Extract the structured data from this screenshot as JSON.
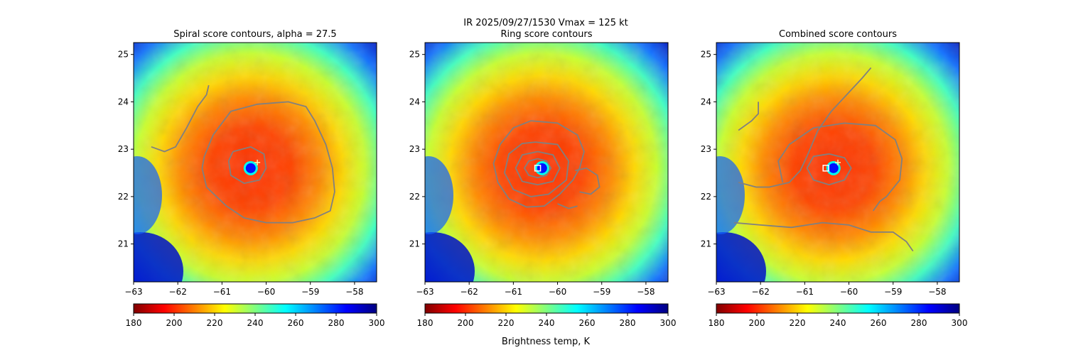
{
  "figure": {
    "suptitle_line1": "IR  2025/09/27/1530    Vmax = 125 kt",
    "colorbar_label": "Brightness temp, K"
  },
  "chart_data": [
    {
      "type": "heatmap",
      "title": "Spiral score contours, alpha = 27.5",
      "xlim": [
        -63,
        -57.5
      ],
      "ylim": [
        20.2,
        25.25
      ],
      "xticks": [
        "-63",
        "-62",
        "-61",
        "-60",
        "-59",
        "-58"
      ],
      "yticks": [
        "21",
        "22",
        "23",
        "24",
        "25"
      ],
      "center": [
        -60.35,
        22.6
      ],
      "colorbar": {
        "cmap": "jet_r",
        "range": [
          180,
          300
        ],
        "ticks": [
          "180",
          "200",
          "220",
          "240",
          "260",
          "280",
          "300"
        ]
      },
      "markers": [
        {
          "kind": "plus",
          "x": -60.2,
          "y": 22.72,
          "color": "#fff8b0"
        }
      ],
      "contours": [
        {
          "color": "#808080",
          "points": [
            [
              -60.75,
              22.95
            ],
            [
              -60.35,
              23.05
            ],
            [
              -60.05,
              22.9
            ],
            [
              -60.0,
              22.6
            ],
            [
              -60.15,
              22.35
            ],
            [
              -60.5,
              22.28
            ],
            [
              -60.8,
              22.45
            ],
            [
              -60.85,
              22.75
            ],
            [
              -60.75,
              22.95
            ]
          ]
        },
        {
          "color": "#808080",
          "points": [
            [
              -61.4,
              22.85
            ],
            [
              -61.2,
              23.3
            ],
            [
              -60.8,
              23.8
            ],
            [
              -60.2,
              23.95
            ],
            [
              -59.5,
              24.0
            ],
            [
              -59.1,
              23.9
            ],
            [
              -58.9,
              23.6
            ],
            [
              -58.65,
              23.1
            ],
            [
              -58.5,
              22.6
            ],
            [
              -58.45,
              22.1
            ],
            [
              -58.55,
              21.7
            ],
            [
              -58.9,
              21.55
            ],
            [
              -59.4,
              21.45
            ],
            [
              -60.0,
              21.45
            ],
            [
              -60.5,
              21.55
            ],
            [
              -60.9,
              21.8
            ],
            [
              -61.35,
              22.2
            ],
            [
              -61.45,
              22.6
            ],
            [
              -61.4,
              22.85
            ]
          ]
        },
        {
          "color": "#808080",
          "points": [
            [
              -62.6,
              23.05
            ],
            [
              -62.3,
              22.95
            ],
            [
              -62.05,
              23.05
            ],
            [
              -61.8,
              23.45
            ],
            [
              -61.55,
              23.9
            ],
            [
              -61.35,
              24.15
            ],
            [
              -61.3,
              24.35
            ]
          ]
        }
      ]
    },
    {
      "type": "heatmap",
      "title": "Ring score contours",
      "xlim": [
        -63,
        -57.5
      ],
      "ylim": [
        20.2,
        25.25
      ],
      "xticks": [
        "-63",
        "-62",
        "-61",
        "-60",
        "-59",
        "-58"
      ],
      "yticks": [
        "21",
        "22",
        "23",
        "24",
        "25"
      ],
      "center": [
        -60.35,
        22.6
      ],
      "colorbar": {
        "cmap": "jet_r",
        "range": [
          180,
          300
        ],
        "ticks": [
          "180",
          "200",
          "220",
          "240",
          "260",
          "280",
          "300"
        ]
      },
      "markers": [
        {
          "kind": "square",
          "x": -60.45,
          "y": 22.6,
          "color": "#ffffff"
        }
      ],
      "contours": [
        {
          "color": "#808080",
          "points": [
            [
              -60.45,
              22.8
            ],
            [
              -60.25,
              22.75
            ],
            [
              -60.15,
              22.6
            ],
            [
              -60.25,
              22.45
            ],
            [
              -60.45,
              22.4
            ],
            [
              -60.65,
              22.45
            ],
            [
              -60.75,
              22.6
            ],
            [
              -60.65,
              22.75
            ],
            [
              -60.45,
              22.8
            ]
          ]
        },
        {
          "color": "#808080",
          "points": [
            [
              -60.45,
              22.95
            ],
            [
              -60.1,
              22.88
            ],
            [
              -59.95,
              22.6
            ],
            [
              -60.1,
              22.32
            ],
            [
              -60.45,
              22.25
            ],
            [
              -60.8,
              22.32
            ],
            [
              -60.95,
              22.6
            ],
            [
              -60.8,
              22.88
            ],
            [
              -60.45,
              22.95
            ]
          ]
        },
        {
          "color": "#808080",
          "points": [
            [
              -60.5,
              23.15
            ],
            [
              -60.0,
              23.1
            ],
            [
              -59.75,
              22.75
            ],
            [
              -59.8,
              22.35
            ],
            [
              -60.2,
              22.05
            ],
            [
              -60.6,
              22.0
            ],
            [
              -61.0,
              22.15
            ],
            [
              -61.2,
              22.5
            ],
            [
              -61.1,
              22.9
            ],
            [
              -60.8,
              23.12
            ],
            [
              -60.5,
              23.15
            ]
          ]
        },
        {
          "color": "#808080",
          "points": [
            [
              -60.6,
              23.6
            ],
            [
              -60.0,
              23.55
            ],
            [
              -59.55,
              23.3
            ],
            [
              -59.4,
              22.95
            ],
            [
              -59.5,
              22.6
            ],
            [
              -59.65,
              22.35
            ],
            [
              -59.95,
              22.05
            ],
            [
              -60.3,
              21.8
            ],
            [
              -60.7,
              21.78
            ],
            [
              -61.1,
              21.95
            ],
            [
              -61.35,
              22.3
            ],
            [
              -61.45,
              22.7
            ],
            [
              -61.3,
              23.1
            ],
            [
              -61.0,
              23.45
            ],
            [
              -60.6,
              23.6
            ]
          ]
        },
        {
          "color": "#808080",
          "points": [
            [
              -59.6,
              22.55
            ],
            [
              -59.35,
              22.6
            ],
            [
              -59.1,
              22.45
            ],
            [
              -59.05,
              22.2
            ],
            [
              -59.25,
              22.05
            ],
            [
              -59.5,
              22.1
            ]
          ]
        },
        {
          "color": "#808080",
          "points": [
            [
              -60.0,
              21.85
            ],
            [
              -59.75,
              21.75
            ],
            [
              -59.55,
              21.8
            ]
          ]
        }
      ]
    },
    {
      "type": "heatmap",
      "title": "Combined score contours",
      "xlim": [
        -63,
        -57.5
      ],
      "ylim": [
        20.2,
        25.25
      ],
      "xticks": [
        "-63",
        "-62",
        "-61",
        "-60",
        "-59",
        "-58"
      ],
      "yticks": [
        "21",
        "22",
        "23",
        "24",
        "25"
      ],
      "center": [
        -60.35,
        22.6
      ],
      "colorbar": {
        "cmap": "jet_r",
        "range": [
          180,
          300
        ],
        "ticks": [
          "180",
          "200",
          "220",
          "240",
          "260",
          "280",
          "300"
        ]
      },
      "markers": [
        {
          "kind": "square",
          "x": -60.52,
          "y": 22.6,
          "color": "#ffffff"
        },
        {
          "kind": "plus",
          "x": -60.25,
          "y": 22.72,
          "color": "#fff8b0"
        }
      ],
      "contours": [
        {
          "color": "#808080",
          "points": [
            [
              -60.45,
              22.9
            ],
            [
              -60.1,
              22.82
            ],
            [
              -59.95,
              22.6
            ],
            [
              -60.1,
              22.35
            ],
            [
              -60.45,
              22.25
            ],
            [
              -60.8,
              22.35
            ],
            [
              -60.95,
              22.6
            ],
            [
              -60.8,
              22.85
            ],
            [
              -60.45,
              22.9
            ]
          ]
        },
        {
          "color": "#808080",
          "points": [
            [
              -60.8,
              23.45
            ],
            [
              -60.1,
              23.55
            ],
            [
              -59.4,
              23.5
            ],
            [
              -58.95,
              23.2
            ],
            [
              -58.8,
              22.8
            ],
            [
              -58.85,
              22.35
            ],
            [
              -59.15,
              22.0
            ],
            [
              -59.3,
              21.9
            ],
            [
              -59.45,
              21.7
            ]
          ]
        },
        {
          "color": "#808080",
          "points": [
            [
              -61.5,
              22.3
            ],
            [
              -61.6,
              22.75
            ],
            [
              -61.35,
              23.1
            ],
            [
              -60.8,
              23.45
            ]
          ]
        },
        {
          "color": "#808080",
          "points": [
            [
              -62.5,
              22.3
            ],
            [
              -62.1,
              22.2
            ],
            [
              -61.8,
              22.2
            ],
            [
              -61.35,
              22.3
            ],
            [
              -61.1,
              22.55
            ],
            [
              -60.95,
              22.85
            ],
            [
              -60.7,
              23.4
            ],
            [
              -60.4,
              23.8
            ],
            [
              -60.0,
              24.2
            ],
            [
              -59.7,
              24.5
            ],
            [
              -59.5,
              24.72
            ]
          ]
        },
        {
          "color": "#808080",
          "points": [
            [
              -62.6,
              21.45
            ],
            [
              -62.0,
              21.4
            ],
            [
              -61.3,
              21.35
            ],
            [
              -60.6,
              21.45
            ],
            [
              -60.0,
              21.4
            ],
            [
              -59.5,
              21.25
            ],
            [
              -59.0,
              21.25
            ],
            [
              -58.7,
              21.05
            ],
            [
              -58.55,
              20.85
            ]
          ]
        },
        {
          "color": "#808080",
          "points": [
            [
              -62.5,
              23.4
            ],
            [
              -62.2,
              23.6
            ],
            [
              -62.05,
              23.75
            ],
            [
              -62.05,
              24.0
            ]
          ]
        }
      ]
    }
  ]
}
